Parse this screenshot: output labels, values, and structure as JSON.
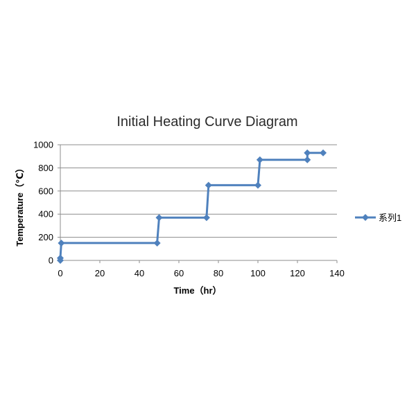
{
  "chart_data": {
    "type": "line",
    "title": "Initial Heating Curve Diagram",
    "xlabel": "Time（hr）",
    "ylabel": "Temperature（℃）",
    "xlim": [
      0,
      140
    ],
    "ylim": [
      0,
      1000
    ],
    "x_ticks": [
      0,
      20,
      40,
      60,
      80,
      100,
      120,
      140
    ],
    "y_ticks": [
      0,
      200,
      400,
      600,
      800,
      1000
    ],
    "grid": "horizontal",
    "legend_position": "right",
    "accent_color": "#4F81BD",
    "series": [
      {
        "name": "系列1",
        "marker": "diamond",
        "x": [
          0,
          0,
          0.5,
          49,
          50,
          74,
          75,
          100,
          101,
          125,
          125,
          133
        ],
        "y": [
          0,
          20,
          150,
          150,
          370,
          370,
          650,
          650,
          870,
          870,
          930,
          930
        ]
      }
    ]
  }
}
